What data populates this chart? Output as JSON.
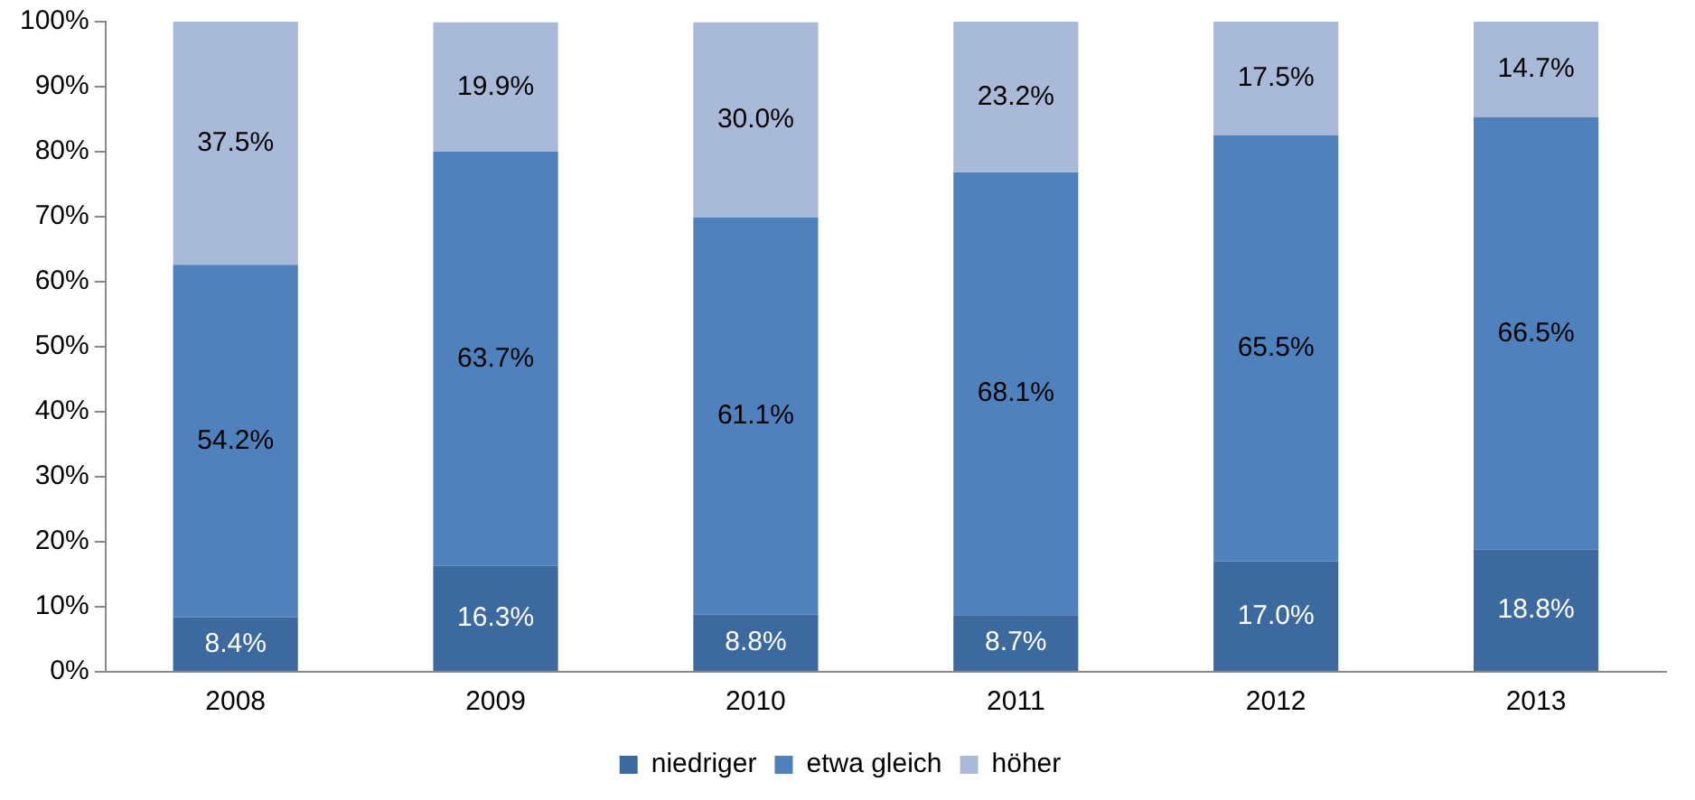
{
  "chart_data": {
    "type": "bar",
    "stacked": true,
    "categories": [
      "2008",
      "2009",
      "2010",
      "2011",
      "2012",
      "2013"
    ],
    "series": [
      {
        "name": "niedriger",
        "color": "#3c6a9e",
        "values": [
          8.4,
          16.3,
          8.8,
          8.7,
          17.0,
          18.8
        ],
        "value_labels": [
          "8.4%",
          "16.3%",
          "8.8%",
          "8.7%",
          "17.0%",
          "18.8%"
        ]
      },
      {
        "name": "etwa gleich",
        "color": "#4f81bd",
        "values": [
          54.2,
          63.7,
          61.1,
          68.1,
          65.5,
          66.5
        ],
        "value_labels": [
          "54.2%",
          "63.7%",
          "61.1%",
          "68.1%",
          "65.5%",
          "66.5%"
        ]
      },
      {
        "name": "höher",
        "color": "#a9bad9",
        "values": [
          37.5,
          19.9,
          30.0,
          23.2,
          17.5,
          14.7
        ],
        "value_labels": [
          "37.5%",
          "19.9%",
          "30.0%",
          "23.2%",
          "17.5%",
          "14.7%"
        ]
      }
    ],
    "ylim": [
      0,
      100
    ],
    "yticks": [
      {
        "value": 0,
        "label": "0%"
      },
      {
        "value": 10,
        "label": "10%"
      },
      {
        "value": 20,
        "label": "20%"
      },
      {
        "value": 30,
        "label": "30%"
      },
      {
        "value": 40,
        "label": "40%"
      },
      {
        "value": 50,
        "label": "50%"
      },
      {
        "value": 60,
        "label": "60%"
      },
      {
        "value": 70,
        "label": "70%"
      },
      {
        "value": 80,
        "label": "80%"
      },
      {
        "value": 90,
        "label": "90%"
      },
      {
        "value": 100,
        "label": "100%"
      }
    ],
    "grid": false,
    "legend": "bottom"
  }
}
